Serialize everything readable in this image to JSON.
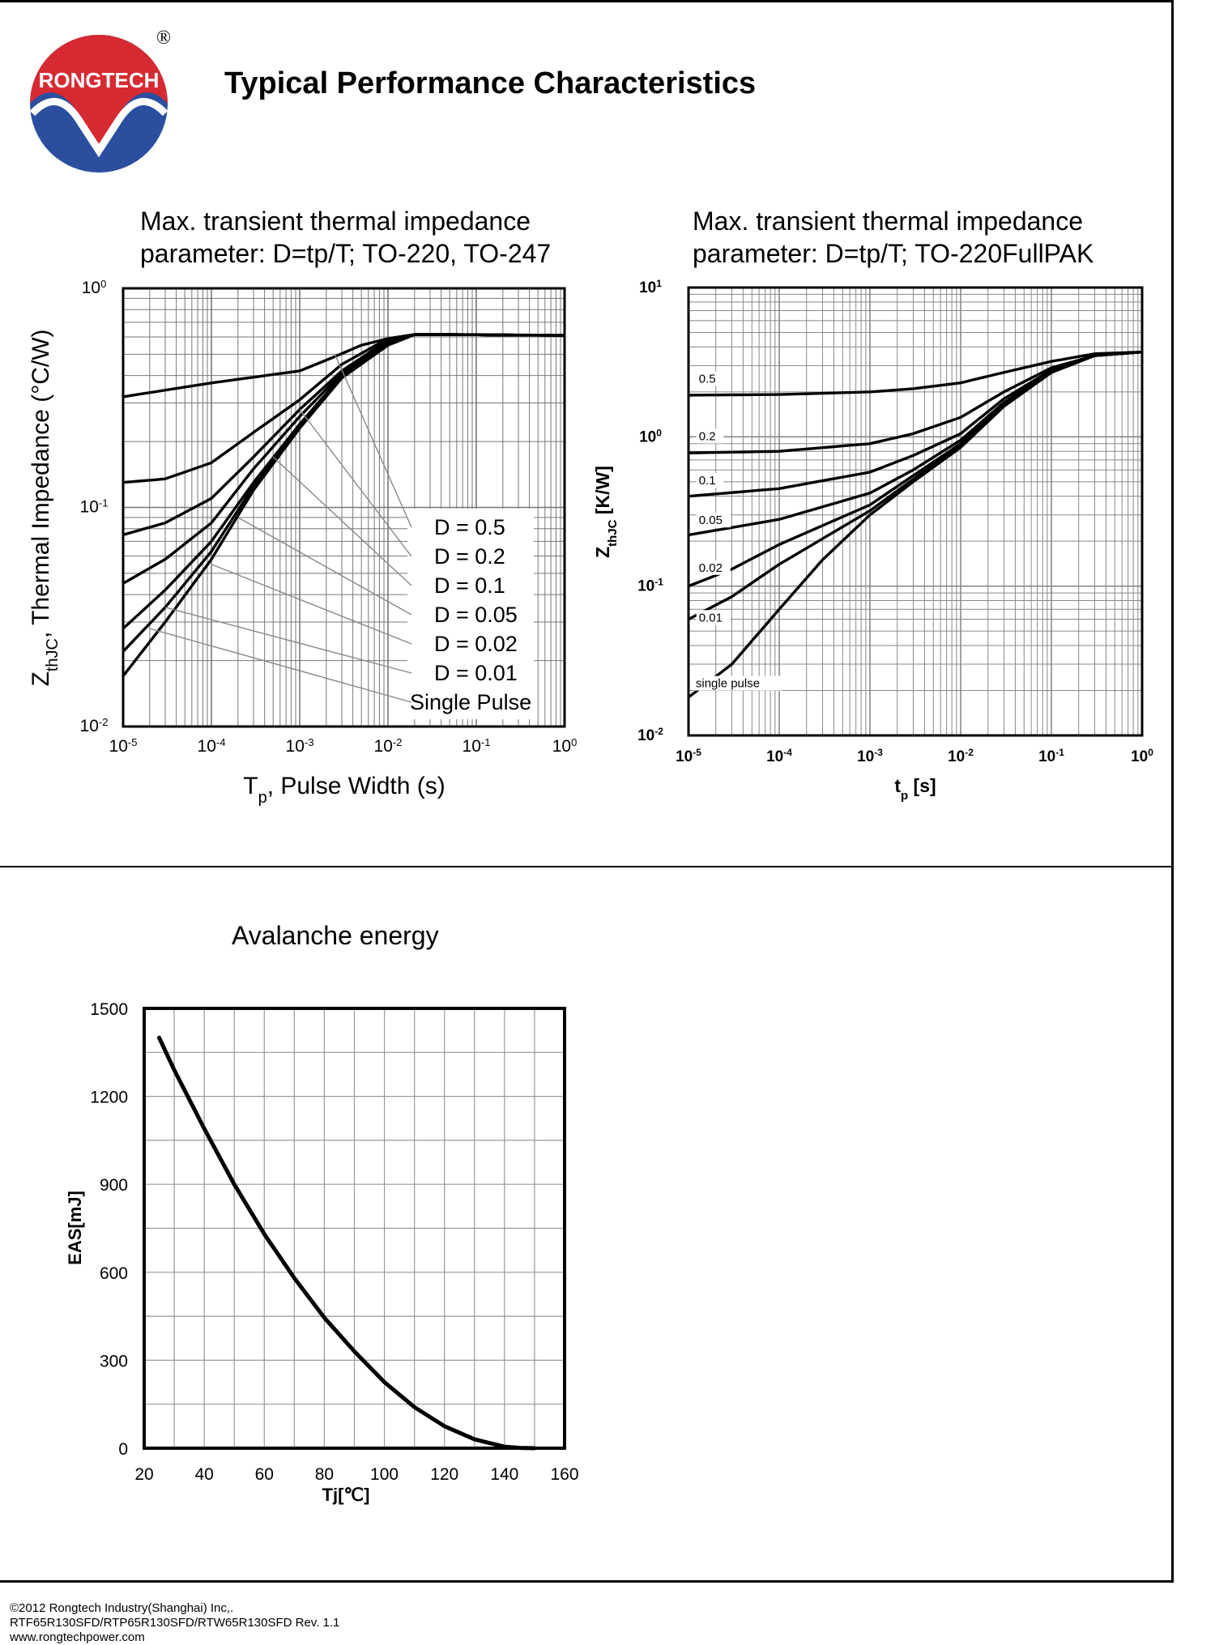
{
  "header": {
    "brand": "RONGTECH",
    "registered": "®",
    "title": "Typical Performance Characteristics"
  },
  "footer": {
    "line1": "©2012 Rongtech Industry(Shanghai) Inc,.",
    "line2": "RTF65R130SFD/RTP65R130SFD/RTW65R130SFD Rev. 1.1",
    "line3": "www.rongtechpower.com"
  },
  "colors": {
    "logo_red": "#d62a32",
    "logo_blue": "#2b4f9e",
    "grid": "#6e6e6e",
    "curve": "#000000"
  },
  "chart_data": [
    {
      "type": "line",
      "title_line1": "Max. transient thermal impedance",
      "title_line2": "parameter: D=tp/T; TO-220, TO-247",
      "xlabel": "T",
      "xlabel_sub": "p",
      "xlabel_rest": ", Pulse Width (s)",
      "ylabel": "Z",
      "ylabel_sub": "thJC",
      "ylabel_rest": ", Thermal Impedance (°C/W)",
      "xscale": "log",
      "yscale": "log",
      "xlim": [
        1e-05,
        1
      ],
      "ylim": [
        0.01,
        1
      ],
      "x_ticks": [
        {
          "mant": "10",
          "exp": "-5"
        },
        {
          "mant": "10",
          "exp": "-4"
        },
        {
          "mant": "10",
          "exp": "-3"
        },
        {
          "mant": "10",
          "exp": "-2"
        },
        {
          "mant": "10",
          "exp": "-1"
        },
        {
          "mant": "10",
          "exp": "0"
        }
      ],
      "y_ticks": [
        {
          "mant": "10",
          "exp": "-2"
        },
        {
          "mant": "10",
          "exp": "-1"
        },
        {
          "mant": "10",
          "exp": "0"
        }
      ],
      "legend": [
        "D = 0.5",
        "D = 0.2",
        "D = 0.1",
        "D = 0.05",
        "D = 0.02",
        "D = 0.01",
        "Single Pulse"
      ],
      "legend_position": "bottom-right",
      "series": [
        {
          "name": "D = 0.5",
          "x": [
            1e-05,
            0.0001,
            0.001,
            0.002,
            0.005,
            0.01,
            0.02,
            0.05,
            0.1,
            1
          ],
          "y": [
            0.32,
            0.37,
            0.42,
            0.47,
            0.55,
            0.59,
            0.615,
            0.615,
            0.615,
            0.61
          ]
        },
        {
          "name": "D = 0.2",
          "x": [
            1e-05,
            3e-05,
            0.0001,
            0.0003,
            0.001,
            0.003,
            0.01,
            0.02,
            0.05,
            1
          ],
          "y": [
            0.13,
            0.135,
            0.16,
            0.22,
            0.31,
            0.45,
            0.59,
            0.615,
            0.615,
            0.61
          ]
        },
        {
          "name": "D = 0.1",
          "x": [
            1e-05,
            3e-05,
            0.0001,
            0.0003,
            0.001,
            0.003,
            0.01,
            0.02,
            0.05,
            1
          ],
          "y": [
            0.075,
            0.085,
            0.11,
            0.17,
            0.28,
            0.42,
            0.58,
            0.615,
            0.615,
            0.61
          ]
        },
        {
          "name": "D = 0.05",
          "x": [
            1e-05,
            3e-05,
            0.0001,
            0.0003,
            0.001,
            0.003,
            0.01,
            0.02,
            0.05,
            1
          ],
          "y": [
            0.045,
            0.058,
            0.085,
            0.15,
            0.26,
            0.41,
            0.57,
            0.615,
            0.615,
            0.61
          ]
        },
        {
          "name": "D = 0.02",
          "x": [
            1e-05,
            3e-05,
            0.0001,
            0.0003,
            0.001,
            0.003,
            0.01,
            0.02,
            0.05,
            1
          ],
          "y": [
            0.028,
            0.042,
            0.07,
            0.13,
            0.24,
            0.4,
            0.56,
            0.615,
            0.615,
            0.61
          ]
        },
        {
          "name": "D = 0.01",
          "x": [
            1e-05,
            3e-05,
            0.0001,
            0.0003,
            0.001,
            0.003,
            0.01,
            0.02,
            0.05,
            1
          ],
          "y": [
            0.022,
            0.035,
            0.063,
            0.125,
            0.235,
            0.395,
            0.555,
            0.615,
            0.615,
            0.61
          ]
        },
        {
          "name": "Single Pulse",
          "x": [
            1e-05,
            3e-05,
            0.0001,
            0.0003,
            0.001,
            0.003,
            0.01,
            0.02,
            0.05,
            1
          ],
          "y": [
            0.017,
            0.03,
            0.058,
            0.12,
            0.23,
            0.39,
            0.55,
            0.615,
            0.615,
            0.61
          ]
        }
      ]
    },
    {
      "type": "line",
      "title_line1": "Max. transient thermal impedance",
      "title_line2": "parameter: D=tp/T; TO-220FullPAK",
      "xlabel": "t",
      "xlabel_sub": "p",
      "xlabel_rest": " [s]",
      "ylabel": "Z",
      "ylabel_sub": "thJC",
      "ylabel_rest": " [K/W]",
      "xscale": "log",
      "yscale": "log",
      "xlim": [
        1e-05,
        1
      ],
      "ylim": [
        0.01,
        10
      ],
      "x_ticks": [
        {
          "mant": "10",
          "exp": "-5"
        },
        {
          "mant": "10",
          "exp": "-4"
        },
        {
          "mant": "10",
          "exp": "-3"
        },
        {
          "mant": "10",
          "exp": "-2"
        },
        {
          "mant": "10",
          "exp": "-1"
        },
        {
          "mant": "10",
          "exp": "0"
        }
      ],
      "y_ticks": [
        {
          "mant": "10",
          "exp": "-2"
        },
        {
          "mant": "10",
          "exp": "-1"
        },
        {
          "mant": "10",
          "exp": "0"
        },
        {
          "mant": "10",
          "exp": "1"
        }
      ],
      "curve_labels": [
        "0.5",
        "0.2",
        "0.1",
        "0.05",
        "0.02",
        "0.01",
        "single pulse"
      ],
      "series": [
        {
          "name": "0.5",
          "x": [
            1e-05,
            0.0001,
            0.001,
            0.003,
            0.01,
            0.03,
            0.1,
            0.3,
            1
          ],
          "y": [
            1.9,
            1.92,
            2.0,
            2.1,
            2.3,
            2.7,
            3.2,
            3.6,
            3.7
          ]
        },
        {
          "name": "0.2",
          "x": [
            1e-05,
            0.0001,
            0.001,
            0.003,
            0.01,
            0.03,
            0.1,
            0.3,
            1
          ],
          "y": [
            0.78,
            0.8,
            0.9,
            1.05,
            1.35,
            2.0,
            2.9,
            3.5,
            3.7
          ]
        },
        {
          "name": "0.1",
          "x": [
            1e-05,
            0.0001,
            0.001,
            0.003,
            0.01,
            0.03,
            0.1,
            0.3,
            1
          ],
          "y": [
            0.4,
            0.45,
            0.58,
            0.75,
            1.05,
            1.8,
            2.8,
            3.5,
            3.7
          ]
        },
        {
          "name": "0.05",
          "x": [
            1e-05,
            0.0001,
            0.001,
            0.003,
            0.01,
            0.03,
            0.1,
            0.3,
            1
          ],
          "y": [
            0.22,
            0.28,
            0.42,
            0.6,
            0.95,
            1.7,
            2.75,
            3.5,
            3.7
          ]
        },
        {
          "name": "0.02",
          "x": [
            1e-05,
            3e-05,
            0.0001,
            0.001,
            0.003,
            0.01,
            0.03,
            0.1,
            0.3,
            1
          ],
          "y": [
            0.1,
            0.13,
            0.19,
            0.35,
            0.55,
            0.9,
            1.65,
            2.7,
            3.5,
            3.7
          ]
        },
        {
          "name": "0.01",
          "x": [
            1e-05,
            3e-05,
            0.0001,
            0.001,
            0.003,
            0.01,
            0.03,
            0.1,
            0.3,
            1
          ],
          "y": [
            0.06,
            0.085,
            0.14,
            0.32,
            0.52,
            0.88,
            1.62,
            2.7,
            3.5,
            3.7
          ]
        },
        {
          "name": "single pulse",
          "x": [
            1e-05,
            3e-05,
            0.0001,
            0.0003,
            0.001,
            0.003,
            0.01,
            0.03,
            0.1,
            0.3,
            1
          ],
          "y": [
            0.018,
            0.03,
            0.07,
            0.15,
            0.3,
            0.5,
            0.85,
            1.6,
            2.7,
            3.5,
            3.7
          ]
        }
      ]
    },
    {
      "type": "line",
      "title": "Avalanche energy",
      "xlabel": "Tj[℃]",
      "ylabel": "EAS[mJ]",
      "xlim": [
        20,
        160
      ],
      "ylim": [
        0,
        1500
      ],
      "x_ticks": [
        "20",
        "40",
        "60",
        "80",
        "100",
        "120",
        "140",
        "160"
      ],
      "y_ticks": [
        "0",
        "300",
        "600",
        "900",
        "1200",
        "1500"
      ],
      "x_minor_step": 10,
      "y_minor_step": 150,
      "series": [
        {
          "name": "EAS",
          "x": [
            25,
            30,
            40,
            50,
            60,
            70,
            80,
            90,
            100,
            110,
            120,
            130,
            140,
            145,
            150
          ],
          "y": [
            1400,
            1290,
            1090,
            900,
            730,
            580,
            445,
            330,
            225,
            140,
            75,
            30,
            5,
            1,
            0
          ]
        }
      ]
    }
  ]
}
